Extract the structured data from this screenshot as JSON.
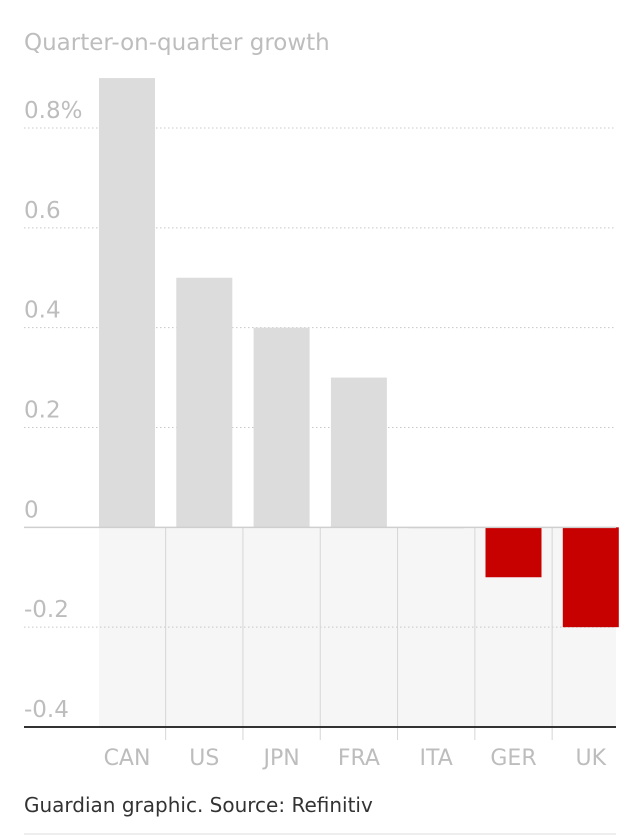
{
  "chart_data": {
    "type": "bar",
    "subtitle": "Quarter-on-quarter growth",
    "categories": [
      "CAN",
      "US",
      "JPN",
      "FRA",
      "ITA",
      "GER",
      "UK"
    ],
    "values": [
      0.9,
      0.5,
      0.4,
      0.3,
      0.0,
      -0.1,
      -0.2
    ],
    "ylim": [
      -0.4,
      0.8
    ],
    "yticks": [
      {
        "value": 0.8,
        "label": "0.8%"
      },
      {
        "value": 0.6,
        "label": "0.6"
      },
      {
        "value": 0.4,
        "label": "0.4"
      },
      {
        "value": 0.2,
        "label": "0.2"
      },
      {
        "value": 0,
        "label": "0"
      },
      {
        "value": -0.2,
        "label": "-0.2"
      },
      {
        "value": -0.4,
        "label": "-0.4"
      }
    ],
    "grid": true,
    "colors": {
      "positive": "#dcdcdc",
      "negative": "#c70000",
      "negative_region": "#f6f6f6",
      "gridline": "#c8c8c8",
      "text": "#bdbdbd"
    }
  },
  "source": "Guardian graphic. Source: Refinitiv"
}
